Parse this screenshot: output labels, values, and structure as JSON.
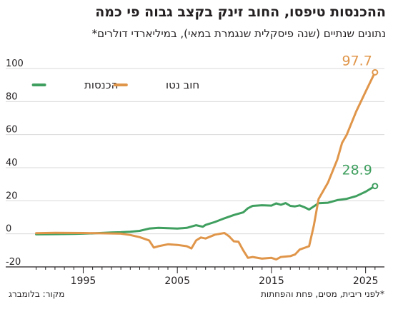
{
  "title": "ההכנסות טיפסו, החוב זינק בקצב גבוה פי כמה",
  "subtitle": "נתונים שנתיים (שנה פיסקלית שנגמרת במאי), במיליארדי דולרים*",
  "footnote": "*לפני ריבית, מסים, פחת והפחתות",
  "source": "מקור: בלומברג",
  "colors": {
    "revenue": "#3f9f5f",
    "debt": "#e0964a",
    "axis": "#231f20",
    "grid": "#d9d9d9"
  },
  "chart_data": {
    "type": "line",
    "xlabel": "",
    "ylabel": "",
    "xlim": [
      1989.5,
      2027
    ],
    "ylim": [
      -20,
      100
    ],
    "xticks": [
      1995,
      2005,
      2015,
      2025
    ],
    "yticks": [
      100,
      80,
      60,
      40,
      20,
      0,
      -20
    ],
    "grid": true,
    "legend_position": "top-right",
    "series": [
      {
        "name": "הכנסות",
        "color": "#3f9f5f",
        "end_label": "28.9",
        "points": [
          [
            1990,
            -0.3
          ],
          [
            1992,
            -0.2
          ],
          [
            1994,
            0
          ],
          [
            1996,
            0.3
          ],
          [
            1998,
            0.8
          ],
          [
            1999,
            1
          ],
          [
            2000,
            1.3
          ],
          [
            2001,
            1.8
          ],
          [
            2002,
            3.2
          ],
          [
            2003,
            3.6
          ],
          [
            2004,
            3.4
          ],
          [
            2005,
            3.2
          ],
          [
            2006,
            3.6
          ],
          [
            2007,
            5.2
          ],
          [
            2007.7,
            4.3
          ],
          [
            2008,
            5.4
          ],
          [
            2009,
            7.2
          ],
          [
            2010,
            9.4
          ],
          [
            2011,
            11.4
          ],
          [
            2012,
            13
          ],
          [
            2012.5,
            15.5
          ],
          [
            2013,
            16.9
          ],
          [
            2014,
            17.3
          ],
          [
            2015,
            17.1
          ],
          [
            2015.5,
            18.4
          ],
          [
            2016,
            17.6
          ],
          [
            2016.5,
            18.6
          ],
          [
            2017,
            16.9
          ],
          [
            2017.5,
            16.6
          ],
          [
            2018,
            17.2
          ],
          [
            2018.5,
            16.1
          ],
          [
            2019,
            14.7
          ],
          [
            2020,
            18.5
          ],
          [
            2021,
            18.8
          ],
          [
            2022,
            20.4
          ],
          [
            2023,
            21.2
          ],
          [
            2024,
            22.8
          ],
          [
            2025,
            25.5
          ],
          [
            2026,
            28.9
          ]
        ]
      },
      {
        "name": "חוב נטו",
        "color": "#e0964a",
        "end_label": "97.7",
        "points": [
          [
            1990,
            0.4
          ],
          [
            1992,
            0.6
          ],
          [
            1995,
            0.5
          ],
          [
            1999,
            0.1
          ],
          [
            2000,
            -0.7
          ],
          [
            2001,
            -2
          ],
          [
            2002,
            -4
          ],
          [
            2002.5,
            -8.3
          ],
          [
            2003,
            -7.5
          ],
          [
            2004,
            -6.3
          ],
          [
            2005,
            -6.7
          ],
          [
            2006,
            -7.5
          ],
          [
            2006.5,
            -8.8
          ],
          [
            2007,
            -4
          ],
          [
            2007.5,
            -2.2
          ],
          [
            2008,
            -2.8
          ],
          [
            2009,
            -0.5
          ],
          [
            2010,
            0.5
          ],
          [
            2010.5,
            -1.5
          ],
          [
            2011,
            -4.5
          ],
          [
            2011.5,
            -4.8
          ],
          [
            2012,
            -10
          ],
          [
            2012.5,
            -14.5
          ],
          [
            2013,
            -14
          ],
          [
            2014,
            -15
          ],
          [
            2015,
            -14.5
          ],
          [
            2015.5,
            -15.5
          ],
          [
            2016,
            -14
          ],
          [
            2017,
            -13.5
          ],
          [
            2017.5,
            -12.5
          ],
          [
            2018,
            -9.5
          ],
          [
            2019,
            -7.5
          ],
          [
            2019.5,
            5
          ],
          [
            2020,
            21
          ],
          [
            2021,
            31
          ],
          [
            2022,
            45
          ],
          [
            2022.5,
            55
          ],
          [
            2023,
            60
          ],
          [
            2024,
            74
          ],
          [
            2025,
            86
          ],
          [
            2026,
            97.7
          ]
        ]
      }
    ]
  }
}
